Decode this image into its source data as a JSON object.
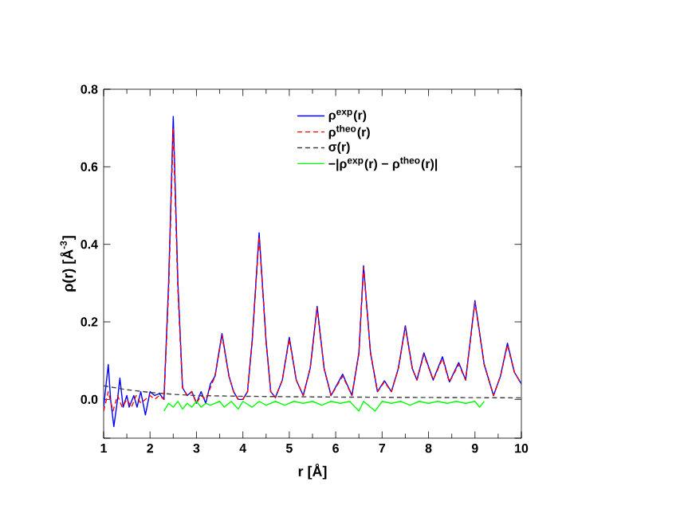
{
  "chart_data": {
    "type": "line",
    "xlabel": "r [Å]",
    "ylabel": "ρ(r) [Å$^{-3}$]",
    "xlim": [
      1,
      10
    ],
    "ylim": [
      -0.1,
      0.8
    ],
    "xticks": [
      1,
      2,
      3,
      4,
      5,
      6,
      7,
      8,
      9,
      10
    ],
    "yticks": [
      {
        "value": -0.1,
        "label": null
      },
      {
        "value": 0,
        "label": "0.0"
      },
      {
        "value": 0.2,
        "label": "0.2"
      },
      {
        "value": 0.4,
        "label": "0.4"
      },
      {
        "value": 0.6,
        "label": "0.6"
      },
      {
        "value": 0.8,
        "label": "0.8"
      }
    ],
    "legend": "top right",
    "grid": false,
    "marker": "none",
    "series": [
      {
        "name": "ρ$^{exp}$(r)",
        "color": "#0000ff",
        "line_style": "solid",
        "x": [
          1.0,
          1.1,
          1.15,
          1.22,
          1.3,
          1.35,
          1.42,
          1.5,
          1.55,
          1.65,
          1.72,
          1.8,
          1.9,
          2.0,
          2.1,
          2.2,
          2.3,
          2.4,
          2.5,
          2.6,
          2.7,
          2.8,
          2.9,
          3.0,
          3.1,
          3.2,
          3.3,
          3.4,
          3.55,
          3.7,
          3.8,
          3.9,
          4.0,
          4.1,
          4.2,
          4.35,
          4.5,
          4.6,
          4.7,
          4.85,
          5.0,
          5.15,
          5.3,
          5.45,
          5.6,
          5.75,
          5.9,
          6.15,
          6.35,
          6.5,
          6.6,
          6.75,
          6.9,
          7.05,
          7.2,
          7.35,
          7.5,
          7.65,
          7.75,
          7.9,
          8.1,
          8.3,
          8.45,
          8.65,
          8.8,
          9.0,
          9.2,
          9.4,
          9.55,
          9.7,
          9.85,
          10.0
        ],
        "values": [
          -0.02,
          0.09,
          0.0,
          -0.07,
          0.0,
          0.055,
          -0.02,
          0.01,
          -0.02,
          0.01,
          -0.02,
          0.02,
          -0.04,
          0.02,
          0.01,
          0.015,
          0.0,
          0.3,
          0.73,
          0.3,
          0.03,
          0.01,
          0.02,
          -0.01,
          0.02,
          -0.01,
          0.04,
          0.06,
          0.17,
          0.06,
          0.02,
          0.0,
          0.0,
          0.02,
          0.15,
          0.43,
          0.15,
          0.02,
          0.005,
          0.05,
          0.16,
          0.05,
          0.01,
          0.08,
          0.24,
          0.08,
          0.01,
          0.065,
          0.01,
          0.12,
          0.345,
          0.12,
          0.02,
          0.048,
          0.02,
          0.08,
          0.19,
          0.08,
          0.05,
          0.12,
          0.05,
          0.11,
          0.045,
          0.095,
          0.05,
          0.255,
          0.09,
          0.01,
          0.06,
          0.145,
          0.07,
          0.04
        ]
      },
      {
        "name": "ρ$^{theo}$(r)",
        "color": "#ff0000",
        "line_style": "dashed",
        "x": [
          1.0,
          1.1,
          1.2,
          1.3,
          1.4,
          1.5,
          1.6,
          1.7,
          1.8,
          1.9,
          2.0,
          2.1,
          2.2,
          2.3,
          2.4,
          2.5,
          2.6,
          2.7,
          2.8,
          2.9,
          3.0,
          3.1,
          3.2,
          3.3,
          3.4,
          3.55,
          3.7,
          3.8,
          3.9,
          4.0,
          4.1,
          4.2,
          4.35,
          4.5,
          4.6,
          4.7,
          4.85,
          5.0,
          5.15,
          5.3,
          5.45,
          5.6,
          5.75,
          5.9,
          6.15,
          6.35,
          6.5,
          6.6,
          6.75,
          6.9,
          7.05,
          7.2,
          7.35,
          7.5,
          7.65,
          7.75,
          7.9,
          8.1,
          8.3,
          8.45,
          8.65,
          8.8,
          9.0,
          9.2,
          9.4,
          9.55,
          9.7,
          9.85,
          10.0
        ],
        "values": [
          -0.03,
          0.02,
          -0.03,
          0.01,
          -0.02,
          0.0,
          -0.02,
          0.01,
          -0.01,
          0.0,
          0.01,
          0.0,
          0.01,
          0.0,
          0.28,
          0.7,
          0.28,
          0.03,
          0.01,
          0.02,
          -0.01,
          0.01,
          0.0,
          0.03,
          0.06,
          0.165,
          0.06,
          0.02,
          0.0,
          0.0,
          0.02,
          0.15,
          0.42,
          0.15,
          0.02,
          0.005,
          0.05,
          0.155,
          0.05,
          0.01,
          0.08,
          0.235,
          0.08,
          0.01,
          0.06,
          0.01,
          0.12,
          0.34,
          0.12,
          0.02,
          0.045,
          0.02,
          0.08,
          0.185,
          0.08,
          0.05,
          0.115,
          0.05,
          0.105,
          0.045,
          0.09,
          0.05,
          0.25,
          0.09,
          0.01,
          0.06,
          0.14,
          0.07,
          0.04
        ]
      },
      {
        "name": "σ(r)",
        "color": "#404040",
        "line_style": "dashed",
        "x": [
          1.0,
          1.5,
          2.0,
          2.5,
          3.0,
          4.0,
          6.0,
          8.0,
          10.0
        ],
        "values": [
          0.035,
          0.025,
          0.018,
          0.013,
          0.01,
          0.008,
          0.006,
          0.005,
          0.004
        ]
      },
      {
        "name": "−|ρ$^{exp}$(r) − ρ$^{theo}$(r)|",
        "color": "#00ff00",
        "line_style": "solid",
        "x": [
          2.3,
          2.4,
          2.5,
          2.6,
          2.7,
          2.8,
          2.9,
          3.0,
          3.1,
          3.2,
          3.3,
          3.5,
          3.6,
          3.75,
          3.9,
          4.0,
          4.2,
          4.35,
          4.5,
          4.7,
          4.9,
          5.1,
          5.3,
          5.5,
          5.7,
          5.9,
          6.1,
          6.3,
          6.5,
          6.6,
          6.85,
          7.0,
          7.2,
          7.4,
          7.6,
          7.8,
          8.0,
          8.2,
          8.4,
          8.6,
          8.8,
          9.0,
          9.1,
          9.2
        ],
        "values": [
          -0.03,
          -0.01,
          -0.02,
          -0.005,
          -0.025,
          -0.01,
          -0.02,
          -0.005,
          -0.02,
          -0.01,
          -0.015,
          -0.005,
          -0.02,
          -0.005,
          -0.025,
          -0.005,
          -0.02,
          -0.005,
          -0.015,
          -0.005,
          -0.015,
          -0.005,
          -0.01,
          -0.005,
          -0.015,
          -0.005,
          -0.01,
          -0.005,
          -0.03,
          -0.005,
          -0.03,
          -0.005,
          -0.01,
          -0.005,
          -0.015,
          -0.005,
          -0.01,
          -0.005,
          -0.01,
          -0.005,
          -0.01,
          -0.005,
          -0.02,
          -0.005
        ]
      }
    ]
  }
}
